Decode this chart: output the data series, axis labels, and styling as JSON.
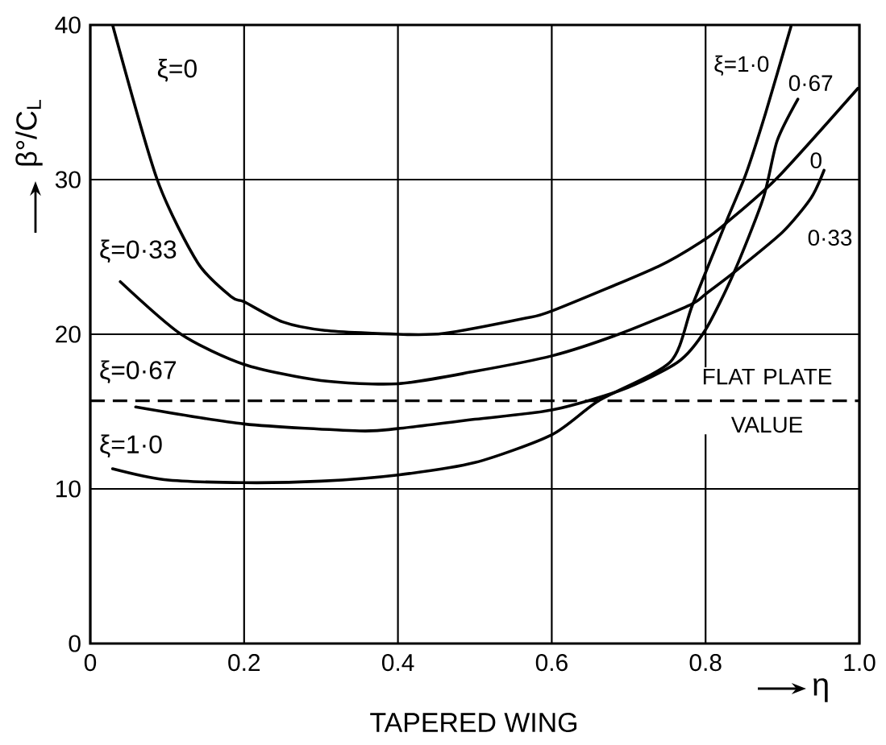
{
  "chart_data": {
    "type": "line",
    "title": "TAPERED WING",
    "xlabel": "η",
    "ylabel": "β°/C$_{L}$",
    "xlim": [
      0,
      1.0
    ],
    "ylim": [
      0,
      40
    ],
    "xticks": [
      0,
      0.2,
      0.4,
      0.6,
      0.8,
      {
        "value": 1,
        "label": "1.0"
      }
    ],
    "yticks": [
      0,
      10,
      20,
      30,
      40
    ],
    "grid": true,
    "legend": false,
    "marker": "none",
    "line_style": "solid",
    "series": [
      {
        "name": "ξ=0",
        "color": "#000000",
        "x": [
          0.029,
          0.087,
          0.14,
          0.184,
          0.2,
          0.25,
          0.305,
          0.4,
          0.459,
          0.562,
          0.6,
          0.739,
          0.798,
          0.827,
          0.893,
          0.998
        ],
        "values": [
          40,
          30,
          24.6,
          22.4,
          22.1,
          20.8,
          20.25,
          20.0,
          20.05,
          21.0,
          21.5,
          24.4,
          26.1,
          27.2,
          30.1,
          35.9
        ]
      },
      {
        "name": "ξ=0·33",
        "color": "#000000",
        "x": [
          0.039,
          0.118,
          0.2,
          0.3,
          0.4,
          0.5,
          0.6,
          0.687,
          0.78,
          0.8,
          0.837,
          0.9,
          0.937,
          0.954
        ],
        "values": [
          23.4,
          20.0,
          18.05,
          17.0,
          16.8,
          17.6,
          18.6,
          20.0,
          21.9,
          22.6,
          24.0,
          26.6,
          28.8,
          30.6
        ]
      },
      {
        "name": "ξ=0·67",
        "color": "#000000",
        "x": [
          0.059,
          0.2,
          0.35,
          0.4,
          0.5,
          0.6,
          0.691,
          0.764,
          0.8,
          0.837,
          0.875,
          0.893,
          0.92
        ],
        "values": [
          15.3,
          14.2,
          13.75,
          13.9,
          14.5,
          15.1,
          16.4,
          18.2,
          20.3,
          24.0,
          28.8,
          32.5,
          35.2
        ]
      },
      {
        "name": "ξ=1·0",
        "color": "#000000",
        "x": [
          0.029,
          0.096,
          0.2,
          0.3,
          0.4,
          0.5,
          0.6,
          0.661,
          0.754,
          0.783,
          0.827,
          0.852,
          0.878,
          0.911
        ],
        "values": [
          11.3,
          10.6,
          10.4,
          10.5,
          10.9,
          11.7,
          13.5,
          15.7,
          18.2,
          21.9,
          27.3,
          30.3,
          34.3,
          39.9
        ]
      }
    ],
    "ref_lines": [
      {
        "axis": "y",
        "value": 15.7,
        "label": "FLAT PLATE VALUE",
        "color": "#000000",
        "line_style": "dashed"
      }
    ],
    "annotations": [
      "ξ=1·0",
      "0·67",
      "0",
      "0·33"
    ]
  }
}
